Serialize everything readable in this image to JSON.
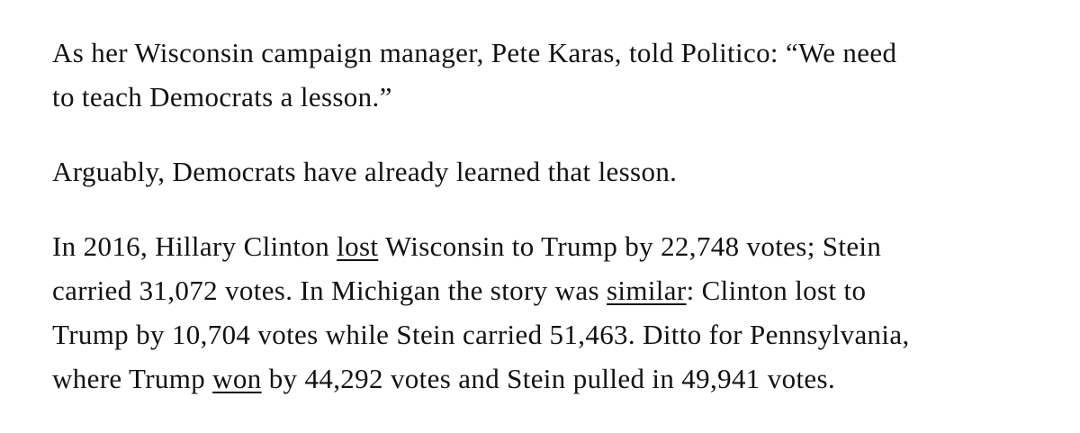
{
  "article": {
    "paragraphs": [
      {
        "lines": [
          [
            {
              "text": "As her Wisconsin campaign manager, Pete Karas, told Politico: “We need"
            }
          ],
          [
            {
              "text": "to teach Democrats a lesson.”"
            }
          ]
        ]
      },
      {
        "lines": [
          [
            {
              "text": "Arguably, Democrats have already learned that lesson."
            }
          ]
        ]
      },
      {
        "lines": [
          [
            {
              "text": "In 2016, Hillary Clinton "
            },
            {
              "text": "lost",
              "link": true
            },
            {
              "text": " Wisconsin to Trump by 22,748 votes; Stein"
            }
          ],
          [
            {
              "text": "carried 31,072 votes. In Michigan the story was "
            },
            {
              "text": "similar",
              "link": true
            },
            {
              "text": ": Clinton lost to"
            }
          ],
          [
            {
              "text": "Trump by 10,704 votes while Stein carried 51,463. Ditto for Pennsylvania,"
            }
          ],
          [
            {
              "text": "where Trump "
            },
            {
              "text": "won",
              "link": true
            },
            {
              "text": " by 44,292 votes and Stein pulled in 49,941 votes."
            }
          ]
        ]
      }
    ]
  }
}
